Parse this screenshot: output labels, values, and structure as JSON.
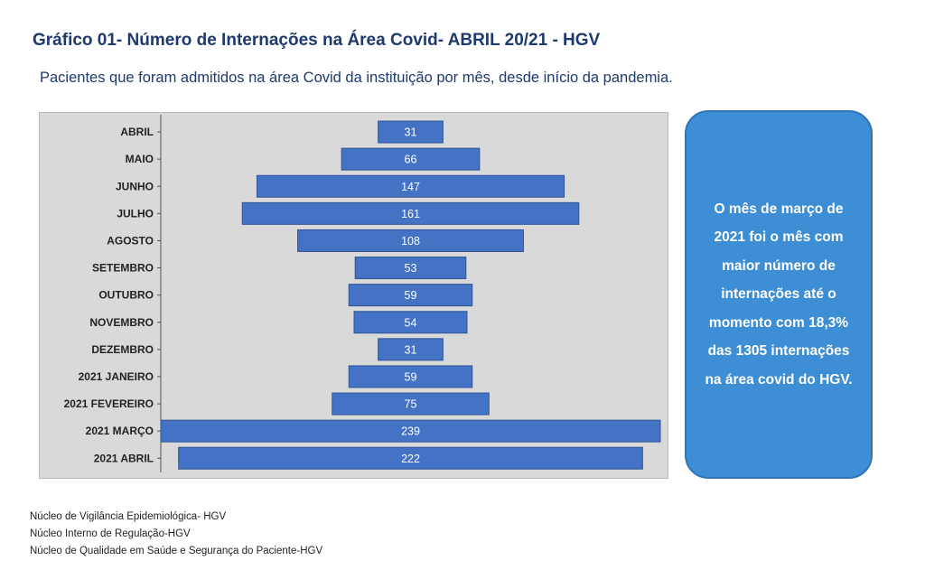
{
  "title": "Gráfico 01- Número de Internações na Área Covid- ABRIL 20/21 - HGV",
  "subtitle": "Pacientes que foram admitidos na área Covid da instituição por mês, desde  início da pandemia.",
  "callout": {
    "text": "O mês de março de 2021 foi o mês com maior número de internações até o momento com 18,3% das 1305 internações na área covid do HGV."
  },
  "footer": {
    "lines": [
      "Núcleo de Vigilância Epidemiológica- HGV",
      "Núcleo Interno de Regulação-HGV",
      "Núcleo de Qualidade em Saúde e Segurança do Paciente-HGV"
    ]
  },
  "colors": {
    "bar": "#4472c4",
    "bar_stroke": "#2f5597",
    "plot_bg": "#d9d9d9",
    "callout_bg": "#3e8ed6",
    "title": "#1f3a6e"
  },
  "chart_data": {
    "type": "bar",
    "orientation": "horizontal",
    "style": "centered (funnel)",
    "categories": [
      "ABRIL",
      "MAIO",
      "JUNHO",
      "JULHO",
      "AGOSTO",
      "SETEMBRO",
      "OUTUBRO",
      "NOVEMBRO",
      "DEZEMBRO",
      "2021 JANEIRO",
      "2021 FEVEREIRO",
      "2021 MARÇO",
      "2021 ABRIL"
    ],
    "values": [
      31,
      66,
      147,
      161,
      108,
      53,
      59,
      54,
      31,
      59,
      75,
      239,
      222
    ],
    "xlim": [
      0,
      239
    ],
    "grid": false,
    "legend": "none"
  }
}
